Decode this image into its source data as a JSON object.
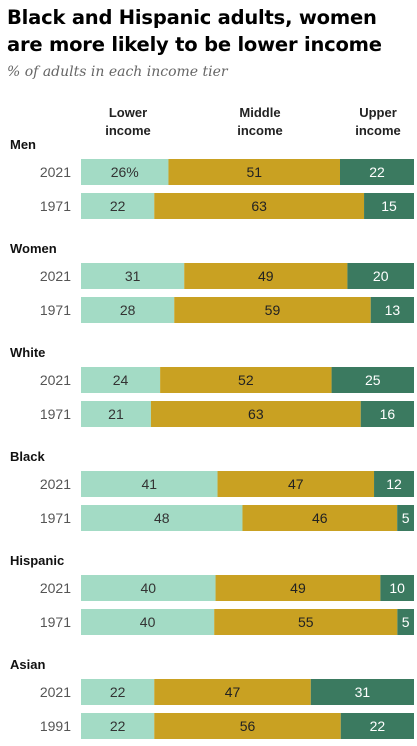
{
  "title": "Black and Hispanic adults, women are more likely to be lower income",
  "subtitle": "% of adults in each income tier",
  "column_headers": {
    "lower": "Lower income",
    "middle": "Middle income",
    "upper": "Upper income"
  },
  "colors": {
    "lower": "#a3dbc5",
    "middle": "#c9a122",
    "upper": "#3b7a60"
  },
  "chart_data": {
    "type": "bar",
    "stacked": true,
    "orientation": "horizontal",
    "series_names": [
      "Lower income",
      "Middle income",
      "Upper income"
    ],
    "groups": [
      {
        "name": "Men",
        "rows": [
          {
            "year": "2021",
            "values": [
              26,
              51,
              22
            ],
            "first_label": "26%"
          },
          {
            "year": "1971",
            "values": [
              22,
              63,
              15
            ]
          }
        ]
      },
      {
        "name": "Women",
        "rows": [
          {
            "year": "2021",
            "values": [
              31,
              49,
              20
            ]
          },
          {
            "year": "1971",
            "values": [
              28,
              59,
              13
            ]
          }
        ]
      },
      {
        "name": "White",
        "rows": [
          {
            "year": "2021",
            "values": [
              24,
              52,
              25
            ]
          },
          {
            "year": "1971",
            "values": [
              21,
              63,
              16
            ]
          }
        ]
      },
      {
        "name": "Black",
        "rows": [
          {
            "year": "2021",
            "values": [
              41,
              47,
              12
            ]
          },
          {
            "year": "1971",
            "values": [
              48,
              46,
              5
            ]
          }
        ]
      },
      {
        "name": "Hispanic",
        "rows": [
          {
            "year": "2021",
            "values": [
              40,
              49,
              10
            ]
          },
          {
            "year": "1971",
            "values": [
              40,
              55,
              5
            ]
          }
        ]
      },
      {
        "name": "Asian",
        "rows": [
          {
            "year": "2021",
            "values": [
              22,
              47,
              31
            ]
          },
          {
            "year": "1991",
            "values": [
              22,
              56,
              22
            ]
          }
        ]
      }
    ]
  }
}
